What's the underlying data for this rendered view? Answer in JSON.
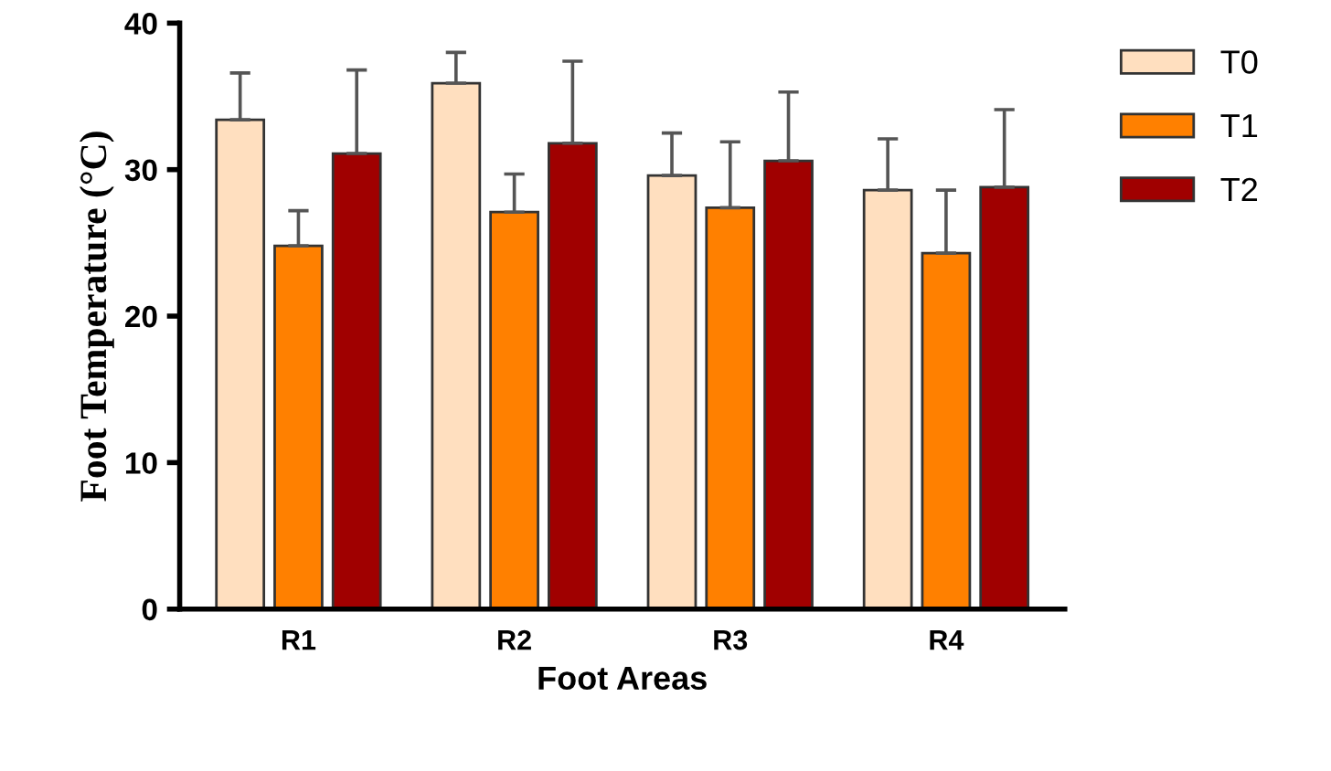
{
  "chart_data": {
    "type": "bar",
    "xlabel": "Foot Areas",
    "ylabel": "Foot Temperature (°C)",
    "categories": [
      "R1",
      "R2",
      "R3",
      "R4"
    ],
    "series": [
      {
        "name": "T0",
        "color": "#ffdfbf",
        "values": [
          33.4,
          35.9,
          29.6,
          28.6
        ],
        "errors": [
          [
            33.4,
            36.6
          ],
          [
            35.9,
            38.0
          ],
          [
            29.6,
            32.5
          ],
          [
            28.6,
            32.1
          ]
        ]
      },
      {
        "name": "T1",
        "color": "#ff8000",
        "values": [
          24.8,
          27.1,
          27.4,
          24.3
        ],
        "errors": [
          [
            24.8,
            27.2
          ],
          [
            27.1,
            29.7
          ],
          [
            27.4,
            31.9
          ],
          [
            24.3,
            28.6
          ]
        ]
      },
      {
        "name": "T2",
        "color": "#a00000",
        "values": [
          31.1,
          31.8,
          30.6,
          28.8
        ],
        "errors": [
          [
            31.1,
            36.8
          ],
          [
            31.8,
            37.4
          ],
          [
            30.6,
            35.3
          ],
          [
            28.8,
            34.1
          ]
        ]
      }
    ],
    "ylim": [
      0,
      40
    ],
    "yticks": [
      0,
      10,
      20,
      30,
      40
    ],
    "grid": false,
    "legend": "right"
  }
}
